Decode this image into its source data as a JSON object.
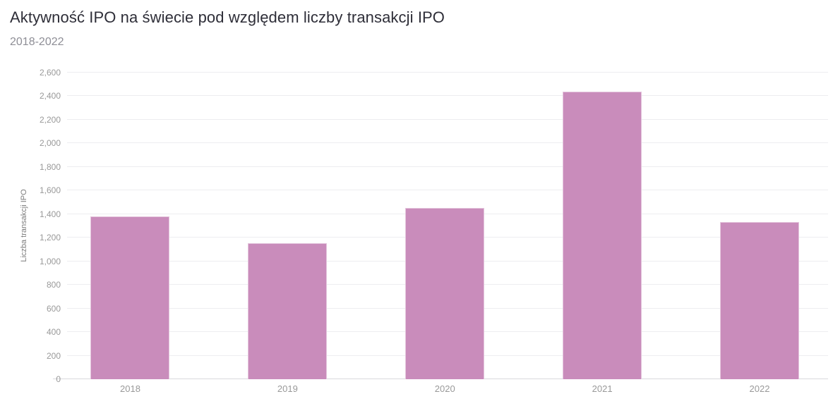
{
  "chart_data": {
    "type": "bar",
    "title": "Aktywność IPO na świecie pod względem liczby transakcji IPO",
    "subtitle": "2018-2022",
    "xlabel": "",
    "ylabel": "Liczba transakcji IPO",
    "categories": [
      "2018",
      "2019",
      "2020",
      "2021",
      "2022"
    ],
    "values": [
      1383,
      1151,
      1452,
      2436,
      1333
    ],
    "ylim": [
      0,
      2600
    ],
    "ytick_step": 200,
    "ytick_labels": [
      "0",
      "200",
      "400",
      "600",
      "800",
      "1,000",
      "1,200",
      "1,400",
      "1,600",
      "1,800",
      "2,000",
      "2,200",
      "2,400",
      "2,600"
    ],
    "grid": true,
    "legend_position": "none",
    "colors": {
      "bar": "#c98cbb",
      "grid": "#ededf0",
      "axis_line": "#d8d8dc",
      "tick_label": "#999999",
      "title": "#2e2e38",
      "subtitle": "#8e8e96",
      "axis_title": "#7c7c7c",
      "background": "#ffffff"
    }
  }
}
